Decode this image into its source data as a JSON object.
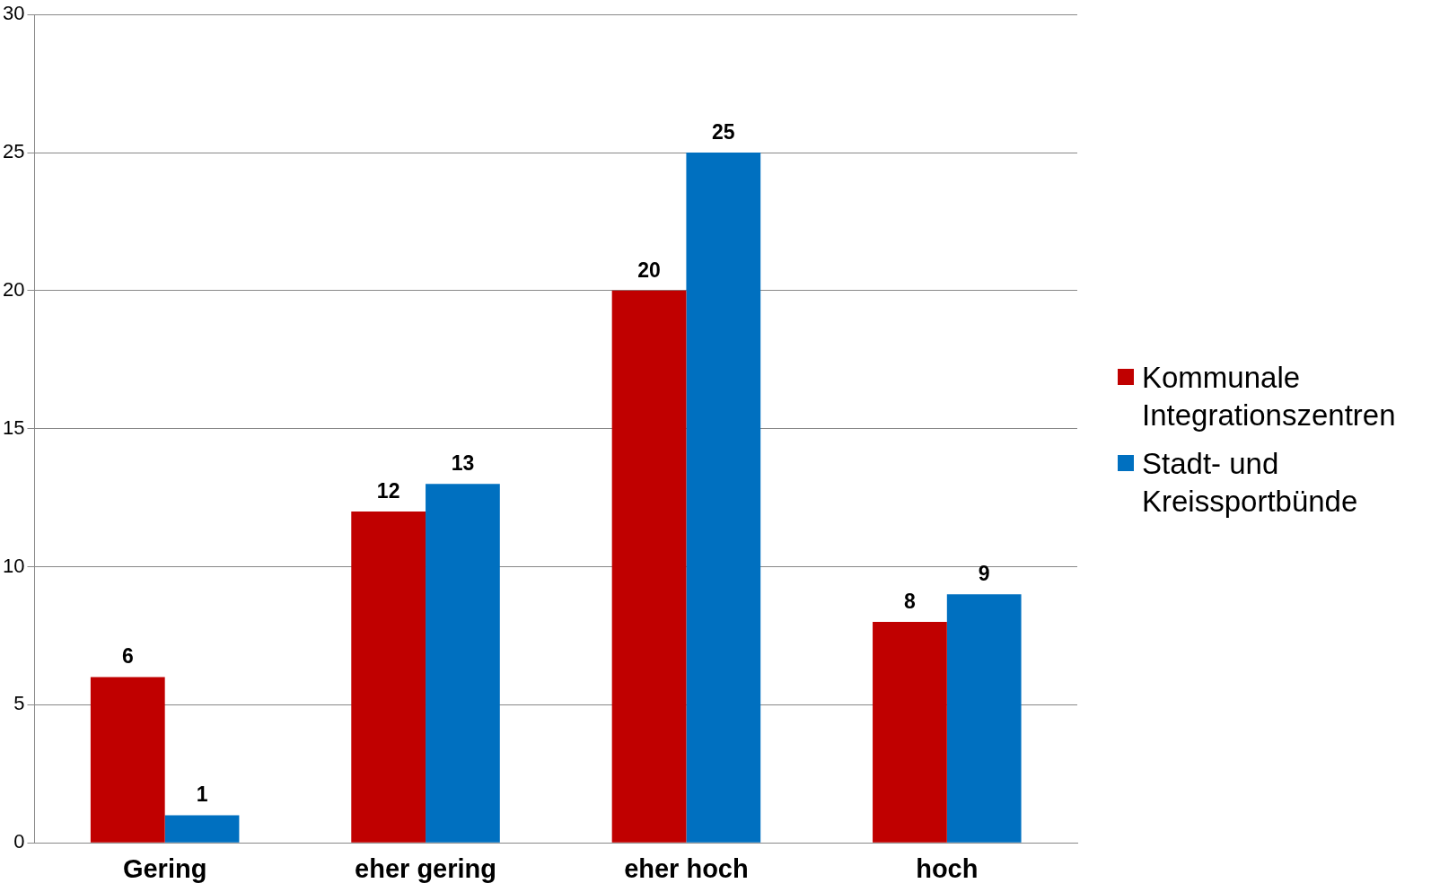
{
  "chart_data": {
    "type": "bar",
    "categories": [
      "Gering",
      "eher gering",
      "eher hoch",
      "hoch"
    ],
    "series": [
      {
        "name": "Kommunale Integrationszentren",
        "color": "#c00000",
        "values": [
          6,
          12,
          20,
          8
        ]
      },
      {
        "name": "Stadt- und Kreissportbünde",
        "color": "#0070c0",
        "values": [
          1,
          13,
          25,
          9
        ]
      }
    ],
    "ylim": [
      0,
      30
    ],
    "yticks": [
      0,
      5,
      10,
      15,
      20,
      25,
      30
    ],
    "grid": "y",
    "legend": "right",
    "data_labels": true
  }
}
